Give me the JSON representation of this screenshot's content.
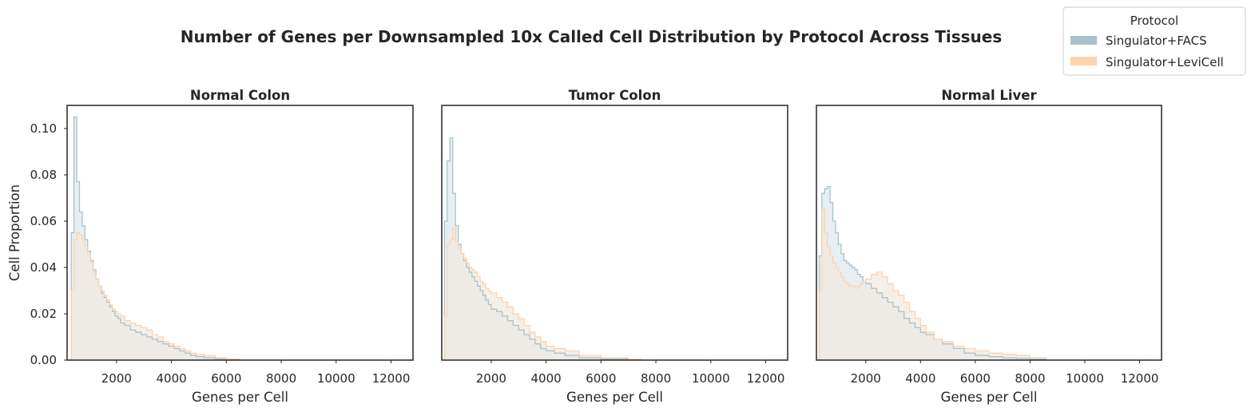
{
  "figure": {
    "title": "Number of Genes per Downsampled 10x Called Cell Distribution by Protocol Across Tissues",
    "legend": {
      "title": "Protocol",
      "placement": "top-right",
      "entries": [
        "Singulator+FACS",
        "Singulator+LeviCell"
      ]
    }
  },
  "colors": {
    "facs_line": "#a9c1cc",
    "facs_fill": "#e8eff2",
    "levicell_line": "#fdd3ad",
    "levicell_fill": "#f0e9e2",
    "axis": "#262626"
  },
  "chart_data": [
    {
      "type": "histogram",
      "title": "Normal Colon",
      "xlabel": "Genes per Cell",
      "ylabel": "Cell Proportion",
      "xlim": [
        200,
        12800
      ],
      "ylim": [
        0,
        0.11
      ],
      "xticks": [
        2000,
        4000,
        6000,
        8000,
        10000,
        12000
      ],
      "xtick_labels": [
        "2000",
        "4000",
        "6000",
        "8000",
        "10000",
        "12000"
      ],
      "yticks": [
        0,
        0.02,
        0.04,
        0.06,
        0.08,
        0.1
      ],
      "ytick_labels": [
        "0.00",
        "0.02",
        "0.04",
        "0.06",
        "0.08",
        "0.10"
      ],
      "grid": false,
      "series": [
        {
          "name": "Singulator+FACS",
          "points": [
            [
              350,
              0.055
            ],
            [
              450,
              0.105
            ],
            [
              550,
              0.077
            ],
            [
              650,
              0.064
            ],
            [
              750,
              0.058
            ],
            [
              850,
              0.052
            ],
            [
              950,
              0.047
            ],
            [
              1050,
              0.043
            ],
            [
              1150,
              0.039
            ],
            [
              1250,
              0.035
            ],
            [
              1350,
              0.032
            ],
            [
              1450,
              0.029
            ],
            [
              1550,
              0.027
            ],
            [
              1650,
              0.025
            ],
            [
              1750,
              0.023
            ],
            [
              1850,
              0.021
            ],
            [
              1950,
              0.019
            ],
            [
              2050,
              0.018
            ],
            [
              2150,
              0.016
            ],
            [
              2300,
              0.015
            ],
            [
              2500,
              0.013
            ],
            [
              2700,
              0.012
            ],
            [
              2900,
              0.011
            ],
            [
              3100,
              0.01
            ],
            [
              3300,
              0.009
            ],
            [
              3500,
              0.008
            ],
            [
              3700,
              0.007
            ],
            [
              3900,
              0.006
            ],
            [
              4100,
              0.005
            ],
            [
              4300,
              0.004
            ],
            [
              4500,
              0.003
            ],
            [
              4700,
              0.002
            ],
            [
              4900,
              0.0015
            ],
            [
              5200,
              0.001
            ],
            [
              5600,
              0.0006
            ],
            [
              6000,
              0.0003
            ],
            [
              6500,
              0
            ]
          ]
        },
        {
          "name": "Singulator+LeviCell",
          "points": [
            [
              350,
              0.03
            ],
            [
              450,
              0.052
            ],
            [
              550,
              0.055
            ],
            [
              650,
              0.054
            ],
            [
              750,
              0.052
            ],
            [
              850,
              0.049
            ],
            [
              950,
              0.046
            ],
            [
              1050,
              0.042
            ],
            [
              1150,
              0.038
            ],
            [
              1250,
              0.035
            ],
            [
              1350,
              0.032
            ],
            [
              1450,
              0.03
            ],
            [
              1550,
              0.028
            ],
            [
              1650,
              0.026
            ],
            [
              1750,
              0.024
            ],
            [
              1850,
              0.022
            ],
            [
              1950,
              0.021
            ],
            [
              2050,
              0.02
            ],
            [
              2150,
              0.019
            ],
            [
              2300,
              0.017
            ],
            [
              2500,
              0.016
            ],
            [
              2700,
              0.015
            ],
            [
              2900,
              0.014
            ],
            [
              3100,
              0.013
            ],
            [
              3300,
              0.011
            ],
            [
              3500,
              0.01
            ],
            [
              3700,
              0.008
            ],
            [
              3900,
              0.007
            ],
            [
              4100,
              0.006
            ],
            [
              4300,
              0.005
            ],
            [
              4500,
              0.004
            ],
            [
              4700,
              0.003
            ],
            [
              4900,
              0.0025
            ],
            [
              5200,
              0.002
            ],
            [
              5600,
              0.001
            ],
            [
              6000,
              0.0005
            ],
            [
              6500,
              0
            ]
          ]
        }
      ]
    },
    {
      "type": "histogram",
      "title": "Tumor Colon",
      "xlabel": "Genes per Cell",
      "ylabel": "",
      "xlim": [
        200,
        12800
      ],
      "ylim": [
        0,
        0.11
      ],
      "xticks": [
        2000,
        4000,
        6000,
        8000,
        10000,
        12000
      ],
      "xtick_labels": [
        "2000",
        "4000",
        "6000",
        "8000",
        "10000",
        "12000"
      ],
      "grid": false,
      "series": [
        {
          "name": "Singulator+FACS",
          "points": [
            [
              300,
              0.06
            ],
            [
              400,
              0.086
            ],
            [
              500,
              0.096
            ],
            [
              600,
              0.072
            ],
            [
              700,
              0.058
            ],
            [
              800,
              0.05
            ],
            [
              900,
              0.046
            ],
            [
              1000,
              0.043
            ],
            [
              1100,
              0.04
            ],
            [
              1200,
              0.038
            ],
            [
              1300,
              0.036
            ],
            [
              1400,
              0.034
            ],
            [
              1500,
              0.032
            ],
            [
              1600,
              0.03
            ],
            [
              1700,
              0.028
            ],
            [
              1800,
              0.026
            ],
            [
              1900,
              0.024
            ],
            [
              2000,
              0.022
            ],
            [
              2200,
              0.021
            ],
            [
              2400,
              0.019
            ],
            [
              2600,
              0.017
            ],
            [
              2800,
              0.015
            ],
            [
              3000,
              0.013
            ],
            [
              3200,
              0.011
            ],
            [
              3400,
              0.009
            ],
            [
              3600,
              0.007
            ],
            [
              3800,
              0.005
            ],
            [
              4000,
              0.004
            ],
            [
              4300,
              0.003
            ],
            [
              4700,
              0.002
            ],
            [
              5200,
              0.001
            ],
            [
              6000,
              0.0005
            ],
            [
              7000,
              0.0002
            ],
            [
              7500,
              0
            ]
          ]
        },
        {
          "name": "Singulator+LeviCell",
          "points": [
            [
              300,
              0.019
            ],
            [
              400,
              0.05
            ],
            [
              500,
              0.052
            ],
            [
              600,
              0.057
            ],
            [
              700,
              0.051
            ],
            [
              800,
              0.048
            ],
            [
              900,
              0.046
            ],
            [
              1000,
              0.044
            ],
            [
              1100,
              0.042
            ],
            [
              1200,
              0.04
            ],
            [
              1300,
              0.039
            ],
            [
              1400,
              0.038
            ],
            [
              1500,
              0.036
            ],
            [
              1600,
              0.034
            ],
            [
              1700,
              0.033
            ],
            [
              1800,
              0.031
            ],
            [
              1900,
              0.03
            ],
            [
              2000,
              0.029
            ],
            [
              2200,
              0.027
            ],
            [
              2400,
              0.025
            ],
            [
              2600,
              0.023
            ],
            [
              2800,
              0.02
            ],
            [
              3000,
              0.018
            ],
            [
              3200,
              0.015
            ],
            [
              3400,
              0.012
            ],
            [
              3600,
              0.01
            ],
            [
              3800,
              0.008
            ],
            [
              4000,
              0.006
            ],
            [
              4300,
              0.005
            ],
            [
              4700,
              0.004
            ],
            [
              5200,
              0.002
            ],
            [
              6000,
              0.001
            ],
            [
              7000,
              0.0004
            ],
            [
              7500,
              0
            ]
          ]
        }
      ]
    },
    {
      "type": "histogram",
      "title": "Normal Liver",
      "xlabel": "Genes per Cell",
      "ylabel": "",
      "xlim": [
        200,
        12800
      ],
      "ylim": [
        0,
        0.11
      ],
      "xticks": [
        2000,
        4000,
        6000,
        8000,
        10000,
        12000
      ],
      "xtick_labels": [
        "2000",
        "4000",
        "6000",
        "8000",
        "10000",
        "12000"
      ],
      "grid": false,
      "series": [
        {
          "name": "Singulator+FACS",
          "points": [
            [
              300,
              0.045
            ],
            [
              400,
              0.072
            ],
            [
              500,
              0.074
            ],
            [
              600,
              0.075
            ],
            [
              700,
              0.068
            ],
            [
              800,
              0.06
            ],
            [
              900,
              0.055
            ],
            [
              1000,
              0.05
            ],
            [
              1100,
              0.046
            ],
            [
              1200,
              0.043
            ],
            [
              1300,
              0.042
            ],
            [
              1400,
              0.041
            ],
            [
              1500,
              0.04
            ],
            [
              1600,
              0.039
            ],
            [
              1700,
              0.037
            ],
            [
              1800,
              0.036
            ],
            [
              1900,
              0.034
            ],
            [
              2000,
              0.033
            ],
            [
              2200,
              0.031
            ],
            [
              2400,
              0.029
            ],
            [
              2600,
              0.027
            ],
            [
              2800,
              0.025
            ],
            [
              3000,
              0.023
            ],
            [
              3200,
              0.021
            ],
            [
              3400,
              0.018
            ],
            [
              3600,
              0.016
            ],
            [
              3800,
              0.014
            ],
            [
              4000,
              0.012
            ],
            [
              4200,
              0.011
            ],
            [
              4500,
              0.009
            ],
            [
              4800,
              0.007
            ],
            [
              5200,
              0.005
            ],
            [
              5600,
              0.003
            ],
            [
              6000,
              0.002
            ],
            [
              6500,
              0.0015
            ],
            [
              7000,
              0.001
            ],
            [
              7500,
              0.0008
            ],
            [
              8000,
              0.0004
            ],
            [
              8600,
              0
            ]
          ]
        },
        {
          "name": "Singulator+LeviCell",
          "points": [
            [
              300,
              0.03
            ],
            [
              400,
              0.065
            ],
            [
              500,
              0.055
            ],
            [
              600,
              0.049
            ],
            [
              700,
              0.045
            ],
            [
              800,
              0.042
            ],
            [
              900,
              0.04
            ],
            [
              1000,
              0.038
            ],
            [
              1100,
              0.036
            ],
            [
              1200,
              0.034
            ],
            [
              1300,
              0.033
            ],
            [
              1400,
              0.032
            ],
            [
              1500,
              0.032
            ],
            [
              1600,
              0.031
            ],
            [
              1700,
              0.032
            ],
            [
              1800,
              0.033
            ],
            [
              1900,
              0.034
            ],
            [
              2000,
              0.035
            ],
            [
              2200,
              0.037
            ],
            [
              2400,
              0.038
            ],
            [
              2600,
              0.036
            ],
            [
              2800,
              0.033
            ],
            [
              3000,
              0.03
            ],
            [
              3200,
              0.028
            ],
            [
              3400,
              0.025
            ],
            [
              3600,
              0.021
            ],
            [
              3800,
              0.018
            ],
            [
              4000,
              0.015
            ],
            [
              4200,
              0.012
            ],
            [
              4500,
              0.009
            ],
            [
              4800,
              0.008
            ],
            [
              5200,
              0.006
            ],
            [
              5600,
              0.005
            ],
            [
              6000,
              0.004
            ],
            [
              6500,
              0.003
            ],
            [
              7000,
              0.0025
            ],
            [
              7500,
              0.002
            ],
            [
              8000,
              0.001
            ],
            [
              8600,
              0
            ]
          ]
        }
      ]
    }
  ]
}
